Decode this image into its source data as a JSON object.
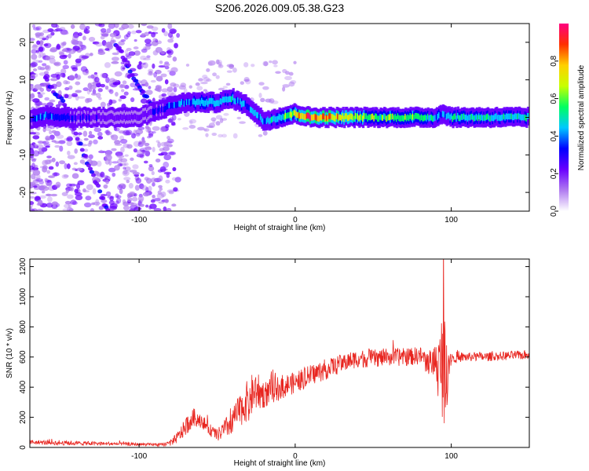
{
  "title": "S206.2026.009.05.38.G23",
  "chart_data": [
    {
      "type": "heatmap",
      "name": "spectrogram",
      "xlabel": "Height of straight line (km)",
      "ylabel": "Frequency (Hz)",
      "xlim": [
        -170,
        150
      ],
      "ylim": [
        -25,
        25
      ],
      "xticks": [
        -100,
        0,
        100
      ],
      "yticks": [
        -20,
        -10,
        0,
        10,
        20
      ],
      "xtick_labels": [
        "-100",
        "0",
        "100"
      ],
      "ytick_labels": [
        "-20",
        "-10",
        "0",
        "10",
        "20"
      ],
      "colorbar": {
        "label": "Normalized spectral amplitude",
        "range": [
          0,
          1
        ],
        "ticks": [
          0.0,
          0.2,
          0.4,
          0.6,
          0.8
        ],
        "tick_labels": [
          "0.0",
          "0.2",
          "0.4",
          "0.6",
          "0.8"
        ],
        "colors": [
          "#ffffff",
          "#b07cf0",
          "#6a00ff",
          "#0000ff",
          "#00c8ff",
          "#00ff60",
          "#c8ff00",
          "#ffd000",
          "#ff3000",
          "#ff0080"
        ]
      },
      "ridge": {
        "description_points_x": [
          -170,
          -160,
          -150,
          -100,
          -80,
          -70,
          -60,
          -50,
          -40,
          -30,
          -20,
          -10,
          0,
          10,
          30,
          50,
          80,
          90,
          95,
          100,
          120,
          150
        ],
        "frequency_hz": [
          -1,
          0.5,
          0,
          0,
          3,
          4,
          4,
          4,
          5,
          3,
          -1,
          0,
          1,
          0,
          0,
          0,
          0,
          0,
          1,
          0,
          0,
          0
        ],
        "amplitude": [
          0.3,
          0.4,
          0.3,
          0.2,
          0.35,
          0.4,
          0.45,
          0.45,
          0.45,
          0.4,
          0.4,
          0.5,
          0.7,
          0.9,
          0.75,
          0.55,
          0.6,
          0.45,
          0.4,
          0.5,
          0.5,
          0.45
        ]
      },
      "diagonal_tracks": [
        {
          "x": [
            -160,
            -150,
            -140,
            -130,
            -120
          ],
          "y": [
            10,
            5,
            -5,
            -15,
            -25
          ]
        },
        {
          "x": [
            -115,
            -105,
            -95,
            -85
          ],
          "y": [
            20,
            12,
            5,
            0
          ]
        }
      ]
    },
    {
      "type": "line",
      "name": "snr",
      "xlabel": "Height of straight line (km)",
      "ylabel": "SNR (10 * v/v)",
      "xlim": [
        -170,
        150
      ],
      "ylim": [
        0,
        1250
      ],
      "xticks": [
        -100,
        0,
        100
      ],
      "yticks": [
        0,
        200,
        400,
        600,
        800,
        1000,
        1200
      ],
      "xtick_labels": [
        "-100",
        "0",
        "100"
      ],
      "ytick_labels": [
        "0",
        "200",
        "400",
        "600",
        "800",
        "1000",
        "1200"
      ],
      "color": "#e8251f",
      "series_envelope": {
        "x": [
          -170,
          -150,
          -120,
          -100,
          -85,
          -80,
          -75,
          -70,
          -65,
          -60,
          -55,
          -50,
          -45,
          -40,
          -35,
          -30,
          -25,
          -20,
          -10,
          0,
          10,
          20,
          30,
          40,
          50,
          60,
          70,
          80,
          85,
          90,
          93,
          95,
          97,
          100,
          110,
          120,
          130,
          140,
          150
        ],
        "mean": [
          35,
          30,
          25,
          20,
          18,
          30,
          70,
          140,
          200,
          180,
          120,
          80,
          120,
          180,
          250,
          320,
          380,
          350,
          400,
          430,
          480,
          520,
          560,
          590,
          590,
          600,
          600,
          610,
          560,
          580,
          500,
          650,
          550,
          600,
          600,
          600,
          605,
          610,
          615
        ],
        "noise": [
          15,
          15,
          12,
          10,
          10,
          20,
          40,
          60,
          60,
          50,
          40,
          40,
          70,
          90,
          110,
          140,
          140,
          90,
          80,
          70,
          70,
          70,
          60,
          60,
          60,
          60,
          60,
          60,
          80,
          120,
          300,
          450,
          300,
          40,
          30,
          30,
          30,
          30,
          30
        ]
      }
    }
  ]
}
